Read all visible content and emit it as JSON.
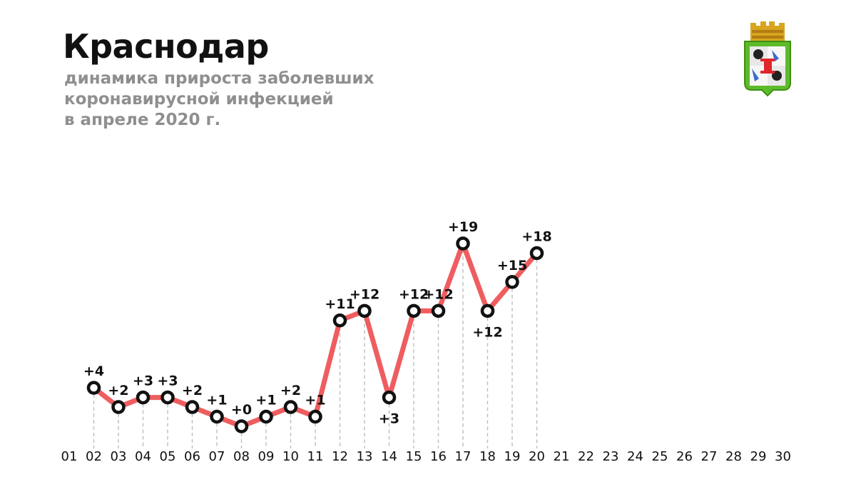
{
  "header": {
    "title": "Краснодар",
    "subtitle_lines": [
      "динамика прироста заболевших",
      "коронавирусной инфекцией",
      "в апреле 2020 г."
    ]
  },
  "emblem": {
    "name": "krasnodar-coat-of-arms"
  },
  "colors": {
    "line": "#ef5d5f",
    "marker_stroke": "#111111",
    "marker_fill": "#ffffff",
    "grid": "#bdbdbd",
    "subtitle": "#8f8f8f"
  },
  "chart_data": {
    "type": "line",
    "title": "",
    "xlabel": "",
    "ylabel": "",
    "x_ticks": [
      "01",
      "02",
      "03",
      "04",
      "05",
      "06",
      "07",
      "08",
      "09",
      "10",
      "11",
      "12",
      "13",
      "14",
      "15",
      "16",
      "17",
      "18",
      "19",
      "20",
      "21",
      "22",
      "23",
      "24",
      "25",
      "26",
      "27",
      "28",
      "29",
      "30"
    ],
    "x": [
      "02",
      "03",
      "04",
      "05",
      "06",
      "07",
      "08",
      "09",
      "10",
      "11",
      "12",
      "13",
      "14",
      "15",
      "16",
      "17",
      "18",
      "19",
      "20"
    ],
    "values": [
      4,
      2,
      3,
      3,
      2,
      1,
      0,
      1,
      2,
      1,
      11,
      12,
      3,
      12,
      12,
      19,
      12,
      15,
      18
    ],
    "labels": [
      "+4",
      "+2",
      "+3",
      "+3",
      "+2",
      "+1",
      "+0",
      "+1",
      "+2",
      "+1",
      "+11",
      "+12",
      "+3",
      "+12",
      "+12",
      "+19",
      "+12",
      "+15",
      "+18"
    ],
    "label_position": [
      "above",
      "above",
      "above",
      "above",
      "above",
      "above",
      "above",
      "above",
      "above",
      "above",
      "above",
      "above",
      "below",
      "above",
      "above",
      "above",
      "below",
      "above",
      "above"
    ],
    "ylim": [
      0,
      20
    ],
    "grid": "vertical dashed drop lines",
    "legend": "none"
  }
}
